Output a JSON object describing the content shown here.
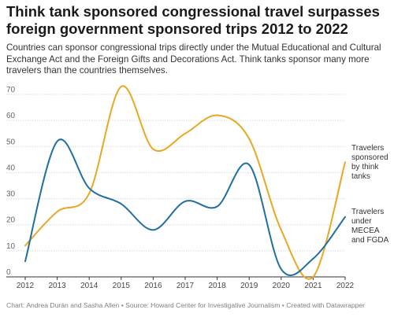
{
  "header": {
    "title": "Think tank sponsored congressional travel surpasses foreign government sponsored trips 2012 to 2022",
    "subtitle": "Countries can sponsor congressional trips directly under the Mutual Educational and Cultural Exchange Act and the Foreign Gifts and Decorations Act. Think tanks sponsor many more travelers than the countries themselves."
  },
  "footer": {
    "credit": "Chart: Andrea Durán and Sasha Allen • Source: Howard Center for Investigative Journalism • Created with Datawrapper"
  },
  "chart_data": {
    "type": "line",
    "x": [
      2012,
      2013,
      2014,
      2015,
      2016,
      2017,
      2018,
      2019,
      2020,
      2021,
      2022
    ],
    "ylim": [
      0,
      70
    ],
    "yticks": [
      0,
      10,
      20,
      30,
      40,
      50,
      60,
      70
    ],
    "grid": true,
    "series": [
      {
        "name": "Travelers sponsored by think tanks",
        "label_lines": [
          "Travelers",
          "sponsored",
          "by think",
          "tanks"
        ],
        "color": "#e8a822",
        "values": [
          12,
          25,
          32,
          73,
          49,
          55,
          62,
          53,
          18,
          0,
          44
        ]
      },
      {
        "name": "Travelers under MECEA and FGDA",
        "label_lines": [
          "Travelers",
          "under",
          "MECEA",
          "and FGDA"
        ],
        "color": "#1f6fa3",
        "values": [
          6,
          52,
          34,
          28,
          18,
          29,
          27,
          43,
          3,
          7,
          23
        ]
      }
    ]
  }
}
